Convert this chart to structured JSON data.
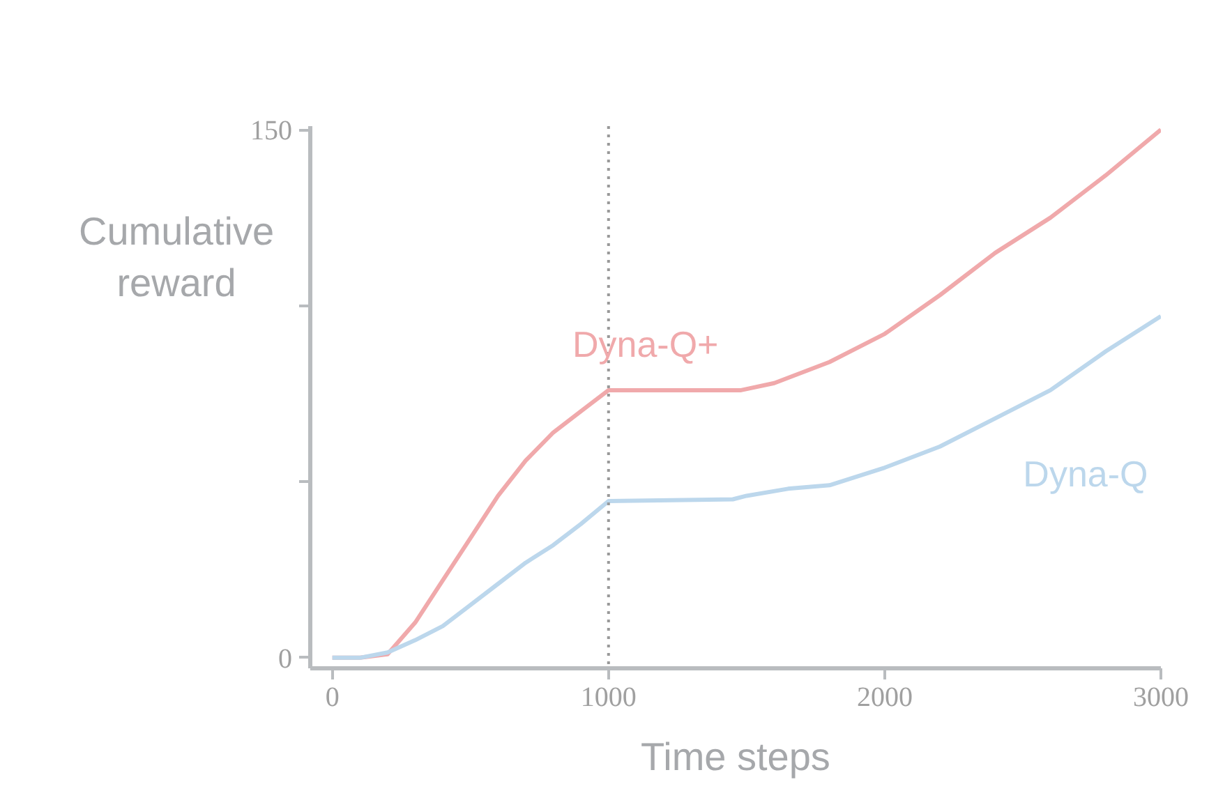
{
  "chart_data": {
    "type": "line",
    "xlabel": "Time steps",
    "ylabel": "Cumulative\nreward",
    "xlim": [
      -80,
      3000
    ],
    "ylim": [
      -3,
      151
    ],
    "xticks": [
      0,
      1000,
      2000,
      3000
    ],
    "yticks": [
      0,
      {
        "value": 50,
        "label": null
      },
      {
        "value": 100,
        "label": null
      },
      150
    ],
    "grid": false,
    "marker": "none",
    "line_style": "solid",
    "ref_lines": [
      {
        "axis": "x",
        "value": 1000,
        "color": "#999999",
        "line_style": "dotted"
      }
    ],
    "series": [
      {
        "name": "Dyna-Q+",
        "color": "#f0a9ab",
        "x": [
          0,
          100,
          200,
          300,
          400,
          500,
          600,
          700,
          800,
          900,
          1000,
          1480,
          1600,
          1800,
          2000,
          2200,
          2400,
          2600,
          2800,
          3000
        ],
        "values": [
          0,
          0,
          1,
          10,
          22,
          34,
          46,
          56,
          64,
          70,
          76,
          76,
          78,
          84,
          92,
          103,
          115,
          125,
          137,
          150
        ]
      },
      {
        "name": "Dyna-Q",
        "color": "#bcd7ec",
        "x": [
          0,
          100,
          200,
          300,
          400,
          500,
          600,
          700,
          800,
          900,
          1000,
          1450,
          1500,
          1650,
          1800,
          2000,
          2200,
          2400,
          2600,
          2800,
          3000
        ],
        "values": [
          0,
          0,
          1.5,
          5,
          9,
          15,
          21,
          27,
          32,
          38,
          44.5,
          45,
          46,
          48,
          49,
          54,
          60,
          68,
          76,
          87,
          97
        ]
      }
    ]
  }
}
